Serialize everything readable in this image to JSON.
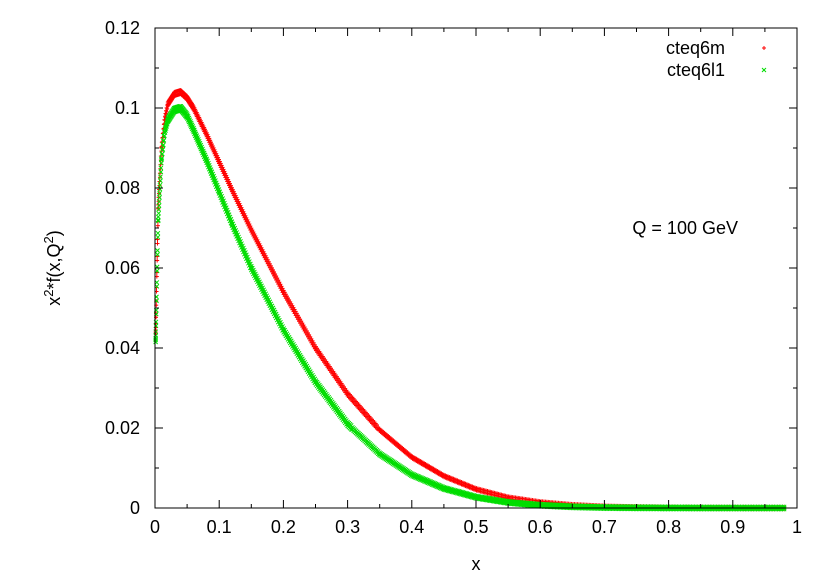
{
  "chart_data": {
    "type": "scatter",
    "title": "",
    "xlabel": "x",
    "ylabel_base": "x",
    "ylabel_sup1": "2",
    "ylabel_mid": "*f(x,Q",
    "ylabel_sup2": "2",
    "ylabel_end": ")",
    "xlim": [
      0,
      1
    ],
    "ylim": [
      0,
      0.12
    ],
    "x_ticks": [
      0,
      0.1,
      0.2,
      0.3,
      0.4,
      0.5,
      0.6,
      0.7,
      0.8,
      0.9,
      1
    ],
    "x_tick_labels": [
      "0",
      "0.1",
      "0.2",
      "0.3",
      "0.4",
      "0.5",
      "0.6",
      "0.7",
      "0.8",
      "0.9",
      "1"
    ],
    "y_ticks": [
      0,
      0.02,
      0.04,
      0.06,
      0.08,
      0.1,
      0.12
    ],
    "y_tick_labels": [
      "0",
      "0.02",
      "0.04",
      "0.06",
      "0.08",
      "0.1",
      "0.12"
    ],
    "grid": false,
    "legend_position": "top-right",
    "annotation": "Q = 100 GeV",
    "series": [
      {
        "name": "cteq6m",
        "marker": "+",
        "color": "#ff0000",
        "x": [
          0.001,
          0.005,
          0.01,
          0.015,
          0.02,
          0.03,
          0.04,
          0.05,
          0.06,
          0.08,
          0.1,
          0.12,
          0.15,
          0.2,
          0.25,
          0.3,
          0.35,
          0.4,
          0.45,
          0.5,
          0.55,
          0.6,
          0.65,
          0.7,
          0.75,
          0.8,
          0.85,
          0.9,
          0.95,
          0.98
        ],
        "y": [
          0.044,
          0.075,
          0.09,
          0.097,
          0.101,
          0.1035,
          0.104,
          0.1025,
          0.1,
          0.0935,
          0.0865,
          0.0795,
          0.0695,
          0.054,
          0.04,
          0.0285,
          0.0195,
          0.0127,
          0.008,
          0.0047,
          0.0026,
          0.0014,
          0.0007,
          0.0003,
          0.00015,
          6e-05,
          2e-05,
          1e-05,
          0.0,
          0.0
        ]
      },
      {
        "name": "cteq6l1",
        "marker": "x",
        "color": "#00dd00",
        "x": [
          0.001,
          0.005,
          0.01,
          0.015,
          0.02,
          0.03,
          0.04,
          0.05,
          0.06,
          0.08,
          0.1,
          0.12,
          0.15,
          0.2,
          0.25,
          0.3,
          0.35,
          0.4,
          0.45,
          0.5,
          0.55,
          0.6,
          0.65,
          0.7,
          0.75,
          0.8,
          0.85,
          0.9,
          0.95,
          0.98
        ],
        "y": [
          0.042,
          0.072,
          0.087,
          0.094,
          0.097,
          0.0995,
          0.1,
          0.098,
          0.0945,
          0.087,
          0.079,
          0.071,
          0.06,
          0.0445,
          0.0315,
          0.021,
          0.0135,
          0.0083,
          0.0049,
          0.0027,
          0.0014,
          0.0007,
          0.0003,
          0.00012,
          5e-05,
          2e-05,
          0.0,
          0.0,
          0.0,
          0.0
        ]
      }
    ]
  }
}
